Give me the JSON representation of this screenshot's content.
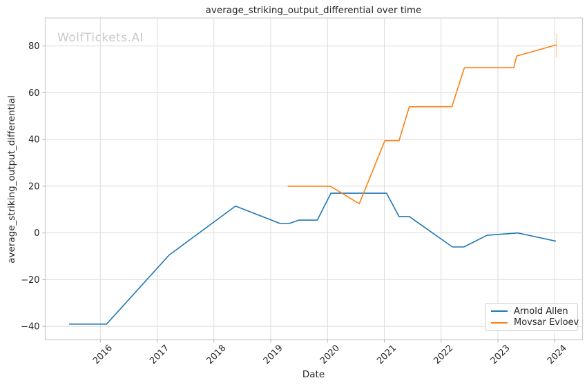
{
  "chart_data": {
    "type": "line",
    "title": "average_striking_output_differential over time",
    "watermark": "WolfTickets.AI",
    "xlabel": "Date",
    "ylabel": "average_striking_output_differential",
    "grid": true,
    "legend_position": "lower right",
    "xlim": [
      2015.03,
      2024.49
    ],
    "ylim": [
      -45.7,
      92
    ],
    "xticks": {
      "values": [
        2016,
        2017,
        2018,
        2019,
        2020,
        2021,
        2022,
        2023,
        2024
      ],
      "labels": [
        "2016",
        "2017",
        "2018",
        "2019",
        "2020",
        "2021",
        "2022",
        "2023",
        "2024"
      ]
    },
    "yticks": {
      "values": [
        -40,
        -20,
        0,
        20,
        40,
        60,
        80
      ],
      "labels": [
        "−40",
        "−20",
        "0",
        "20",
        "40",
        "60",
        "80"
      ]
    },
    "series": [
      {
        "name": "Arnold Allen",
        "color": "#1f77b4",
        "x": [
          2015.45,
          2016.11,
          2017.21,
          2018.38,
          2019.17,
          2019.32,
          2019.5,
          2019.82,
          2020.06,
          2021.04,
          2021.26,
          2021.44,
          2022.2,
          2022.4,
          2022.81,
          2023.35,
          2024.02
        ],
        "y": [
          -39,
          -39,
          -9.5,
          11.5,
          4,
          4,
          5.5,
          5.5,
          17,
          17,
          7,
          7,
          -6,
          -6,
          -1,
          0,
          -3.5
        ]
      },
      {
        "name": "Movsar Evloev",
        "color": "#ff7f0e",
        "x": [
          2019.3,
          2020.05,
          2020.56,
          2021.01,
          2021.26,
          2021.44,
          2022.19,
          2022.41,
          2023.28,
          2023.33,
          2024.03
        ],
        "y": [
          20,
          20,
          12.5,
          39.5,
          39.5,
          54,
          54,
          70.7,
          70.7,
          75.7,
          80.5
        ],
        "error_bar": {
          "x": 2024.03,
          "y_low": 75,
          "y_high": 85.2
        }
      }
    ],
    "colors": {
      "grid": "#dcdcdc",
      "spine": "#cfcfcf",
      "tick": "#b0b0b0",
      "text": "#262626",
      "watermark": "#c9c9c9"
    }
  }
}
